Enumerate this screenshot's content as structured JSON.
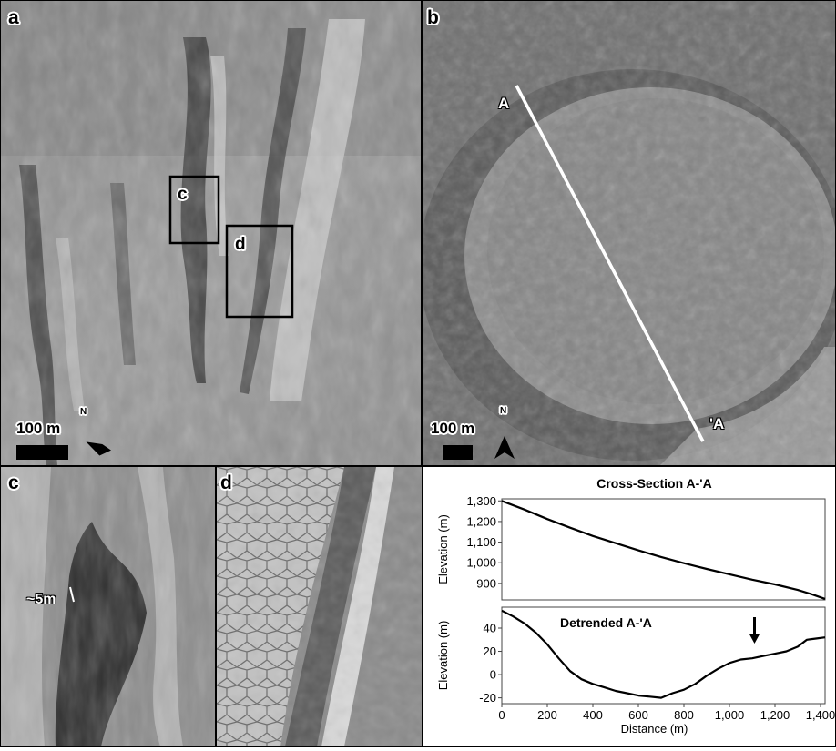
{
  "panel_labels": {
    "a": "a",
    "b": "b",
    "c": "c",
    "d": "d"
  },
  "panel_a": {
    "scale_label": "100 m",
    "north_label": "N",
    "inset_box_c": "c",
    "inset_box_d": "d"
  },
  "panel_b": {
    "scale_label": "100 m",
    "north_label": "N",
    "profile_start": "A",
    "profile_end": "'A"
  },
  "panel_c": {
    "measurement_label": "~5m"
  },
  "chart_data": [
    {
      "type": "line",
      "title": "Cross-Section A-'A",
      "xlabel": "",
      "ylabel": "Elevation (m)",
      "xlim": [
        0,
        1420
      ],
      "ylim": [
        820,
        1310
      ],
      "yticks": [
        900,
        1000,
        1100,
        1200,
        1300
      ],
      "ytick_labels": [
        "900",
        "1,000",
        "1,100",
        "1,200",
        "1,300"
      ],
      "series": [
        {
          "x": [
            0,
            100,
            200,
            300,
            400,
            500,
            600,
            700,
            800,
            900,
            1000,
            1100,
            1200,
            1300,
            1360,
            1420
          ],
          "values": [
            1300,
            1258,
            1212,
            1170,
            1130,
            1095,
            1060,
            1028,
            998,
            970,
            944,
            918,
            895,
            868,
            848,
            825
          ]
        }
      ]
    },
    {
      "type": "line",
      "title": "Detrended A-'A",
      "xlabel": "Distance (m)",
      "ylabel": "Elevation (m)",
      "xlim": [
        0,
        1420
      ],
      "ylim": [
        -25,
        58
      ],
      "xticks": [
        0,
        200,
        400,
        600,
        800,
        1000,
        1200,
        1400
      ],
      "xtick_labels": [
        "0",
        "200",
        "400",
        "600",
        "800",
        "1,000",
        "1,200",
        "1,400"
      ],
      "yticks": [
        -20,
        0,
        20,
        40
      ],
      "ytick_labels": [
        "-20",
        "0",
        "20",
        "40"
      ],
      "arrow_at_x": 1110,
      "series": [
        {
          "x": [
            0,
            50,
            100,
            150,
            200,
            250,
            300,
            350,
            400,
            450,
            500,
            550,
            600,
            650,
            700,
            750,
            800,
            850,
            900,
            950,
            1000,
            1050,
            1100,
            1150,
            1200,
            1250,
            1300,
            1340,
            1380,
            1420
          ],
          "values": [
            55,
            50,
            44,
            36,
            26,
            14,
            3,
            -4,
            -8,
            -11,
            -14,
            -16,
            -18,
            -19,
            -20,
            -16,
            -13,
            -8,
            -1,
            5,
            10,
            13,
            14,
            16,
            18,
            20,
            24,
            30,
            31,
            32
          ]
        }
      ]
    }
  ]
}
